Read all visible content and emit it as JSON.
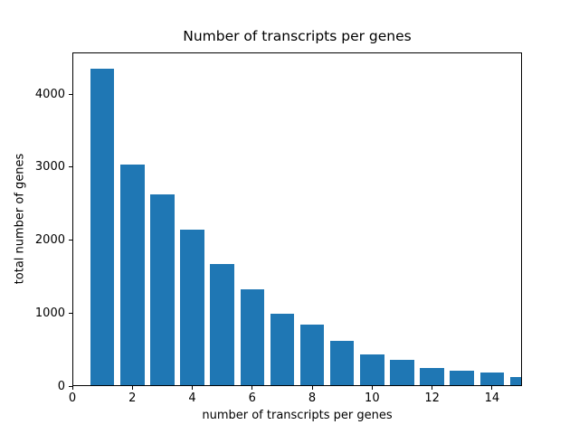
{
  "chart_data": {
    "type": "bar",
    "title": "Number of transcripts per genes",
    "xlabel": "number of transcripts per genes",
    "ylabel": "total number of genes",
    "x": [
      1,
      2,
      3,
      4,
      5,
      6,
      7,
      8,
      9,
      10,
      11,
      12,
      13,
      14,
      15
    ],
    "values": [
      4350,
      3040,
      2630,
      2140,
      1670,
      1320,
      990,
      840,
      620,
      430,
      355,
      245,
      210,
      185,
      130
    ],
    "bar_width": 0.8,
    "bar_color": "#1f77b4",
    "xlim": [
      0,
      15
    ],
    "ylim": [
      0,
      4570
    ],
    "xticks": [
      0,
      2,
      4,
      6,
      8,
      10,
      12,
      14
    ],
    "yticks": [
      0,
      1000,
      2000,
      3000,
      4000
    ],
    "grid": false,
    "legend": null,
    "background_color": "#ffffff",
    "spine_color": "#000000"
  }
}
